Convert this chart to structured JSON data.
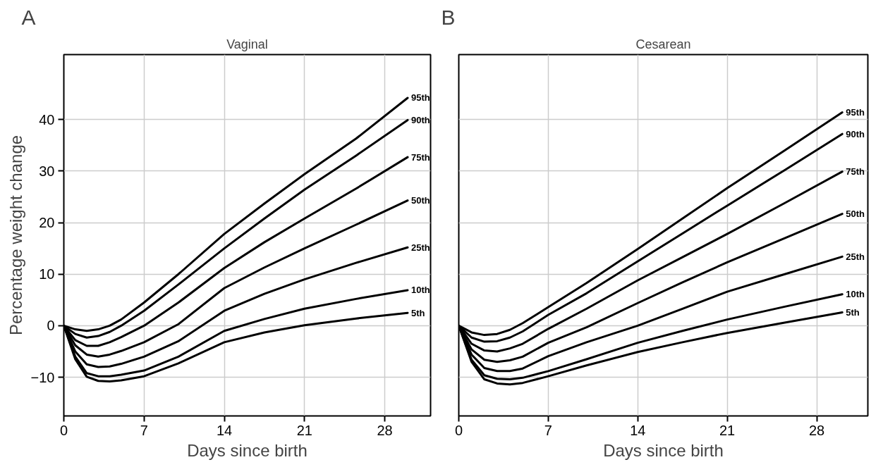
{
  "chart_data": [
    {
      "type": "line",
      "title": "Vaginal",
      "xlabel": "Days since birth",
      "ylabel": "Percentage weight change",
      "annotations": [
        "A"
      ],
      "x": [
        0,
        1,
        2,
        3,
        4,
        5,
        7,
        10,
        14,
        17.5,
        21,
        25.5,
        30
      ],
      "series": [
        {
          "name": "95th",
          "color": "#000000",
          "values": [
            0,
            -0.7,
            -1,
            -0.7,
            0,
            1.2,
            4.5,
            10,
            17.8,
            23.7,
            29.4,
            36.3,
            44.2
          ]
        },
        {
          "name": "90th",
          "color": "#000000",
          "values": [
            0,
            -1.6,
            -2.3,
            -2,
            -1.2,
            0,
            2.9,
            8,
            15,
            20.8,
            26.4,
            33,
            39.9
          ]
        },
        {
          "name": "75th",
          "color": "#000000",
          "values": [
            0,
            -2.8,
            -3.9,
            -3.9,
            -3.2,
            -2.2,
            0,
            4.5,
            11.2,
            16.2,
            20.8,
            26.6,
            32.7
          ]
        },
        {
          "name": "50th",
          "color": "#000000",
          "values": [
            0,
            -3.8,
            -5.6,
            -6,
            -5.6,
            -4.9,
            -3.2,
            0.3,
            7.3,
            11.3,
            15,
            19.6,
            24.3
          ]
        },
        {
          "name": "25th",
          "color": "#000000",
          "values": [
            0,
            -5,
            -7.5,
            -8,
            -7.9,
            -7.4,
            -6,
            -3,
            2.9,
            6.2,
            9,
            12.2,
            15.2
          ]
        },
        {
          "name": "10th",
          "color": "#000000",
          "values": [
            0,
            -6,
            -9.2,
            -9.8,
            -9.8,
            -9.5,
            -8.7,
            -6,
            -1,
            1.3,
            3.3,
            5.2,
            6.9
          ]
        },
        {
          "name": "5th",
          "color": "#000000",
          "values": [
            0,
            -6.5,
            -9.9,
            -10.7,
            -10.8,
            -10.6,
            -9.8,
            -7.3,
            -3.2,
            -1.3,
            0.1,
            1.4,
            2.5
          ]
        }
      ],
      "xlim": [
        0,
        32
      ],
      "ylim": [
        -17.5,
        52.6
      ],
      "xticks": [
        0,
        7,
        14,
        21,
        28
      ],
      "yticks": [
        -10,
        0,
        10,
        20,
        30,
        40
      ],
      "grid": true,
      "line_style": "solid",
      "marker": "none"
    },
    {
      "type": "line",
      "title": "Cesarean",
      "xlabel": "Days since birth",
      "annotations": [
        "B"
      ],
      "x": [
        0,
        1,
        2,
        3,
        4,
        5,
        7,
        10,
        14,
        17.5,
        21,
        25.5,
        30
      ],
      "series": [
        {
          "name": "95th",
          "color": "#000000",
          "values": [
            0,
            -1.3,
            -1.8,
            -1.6,
            -0.8,
            0.5,
            3.6,
            8.3,
            14.9,
            20.8,
            26.7,
            34,
            41.4
          ]
        },
        {
          "name": "90th",
          "color": "#000000",
          "values": [
            0,
            -2.3,
            -3.1,
            -3,
            -2.3,
            -1.1,
            2.1,
            6.3,
            12.5,
            17.9,
            23.3,
            30.2,
            37.2
          ]
        },
        {
          "name": "75th",
          "color": "#000000",
          "values": [
            0,
            -3.5,
            -4.8,
            -5,
            -4.4,
            -3.5,
            -0.6,
            3.3,
            8.8,
            13.3,
            17.8,
            23.8,
            29.9
          ]
        },
        {
          "name": "50th",
          "color": "#000000",
          "values": [
            0,
            -4.6,
            -6.6,
            -7,
            -6.7,
            -6,
            -3.3,
            -0.3,
            4.4,
            8.4,
            12.3,
            17,
            21.7
          ]
        },
        {
          "name": "25th",
          "color": "#000000",
          "values": [
            0,
            -5.6,
            -8.2,
            -8.8,
            -8.8,
            -8.3,
            -5.9,
            -3.2,
            0,
            3.3,
            6.6,
            10,
            13.4
          ]
        },
        {
          "name": "10th",
          "color": "#000000",
          "values": [
            0,
            -6.6,
            -9.6,
            -10.3,
            -10.4,
            -10.1,
            -8.8,
            -6.5,
            -3.3,
            -1,
            1.2,
            3.7,
            6.1
          ]
        },
        {
          "name": "5th",
          "color": "#000000",
          "values": [
            0,
            -7,
            -10.4,
            -11.2,
            -11.4,
            -11.1,
            -9.8,
            -7.7,
            -5.1,
            -3.2,
            -1.4,
            0.6,
            2.6
          ]
        }
      ],
      "xlim": [
        0,
        32
      ],
      "ylim": [
        -17.5,
        52.6
      ],
      "xticks": [
        0,
        7,
        14,
        21,
        28
      ],
      "yticks": [
        -10,
        0,
        10,
        20,
        30,
        40
      ],
      "grid": true,
      "tick_labels": "x",
      "line_style": "solid",
      "marker": "none"
    }
  ]
}
